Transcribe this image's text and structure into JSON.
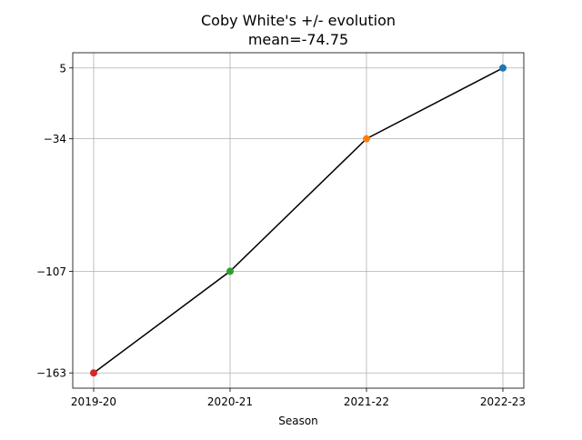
{
  "chart_data": {
    "type": "line",
    "title": "Coby White's +/- evolution",
    "subtitle": "mean=-74.75",
    "xlabel": "Season",
    "ylabel": "",
    "categories": [
      "2019-20",
      "2020-21",
      "2021-22",
      "2022-23"
    ],
    "values": [
      -163,
      -107,
      -34,
      5
    ],
    "point_colors": [
      "#d62728",
      "#2ca02c",
      "#ff7f0e",
      "#1f77b4"
    ],
    "line_color": "#000000",
    "y_ticks": [
      -163,
      -107,
      -34,
      5
    ],
    "y_tick_labels": [
      "−163",
      "−107",
      "−34",
      "5"
    ],
    "ylim": [
      -171.4,
      13.4
    ],
    "grid": true,
    "legend": "none"
  }
}
